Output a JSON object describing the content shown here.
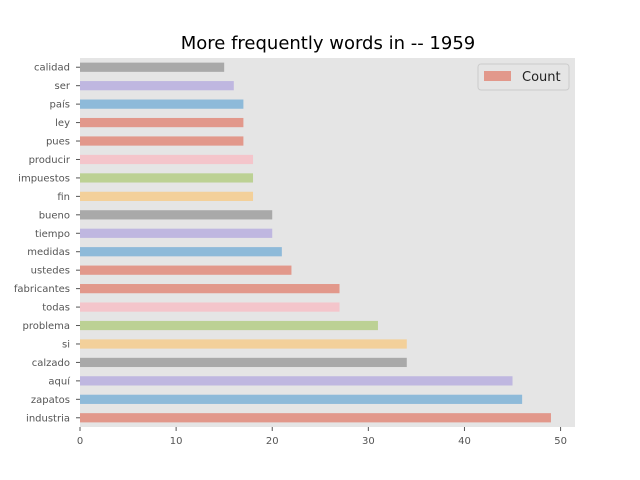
{
  "chart_data": {
    "type": "bar",
    "orientation": "horizontal",
    "title": "More frequently words in -- 1959",
    "xlabel": "",
    "ylabel": "",
    "categories": [
      "industria",
      "zapatos",
      "aquí",
      "calzado",
      "si",
      "problema",
      "todas",
      "fabricantes",
      "ustedes",
      "medidas",
      "tiempo",
      "bueno",
      "fin",
      "impuestos",
      "producir",
      "pues",
      "ley",
      "país",
      "ser",
      "calidad"
    ],
    "series": [
      {
        "name": "Count",
        "values": [
          49,
          46,
          45,
          34,
          34,
          31,
          27,
          27,
          22,
          21,
          20,
          20,
          18,
          18,
          18,
          17,
          17,
          17,
          16,
          15
        ]
      }
    ],
    "xlim": [
      0,
      51.5
    ],
    "xticks": [
      0,
      10,
      20,
      30,
      40,
      50
    ],
    "grid": false,
    "legend_position": "top-right",
    "background_color": "#e5e5e5",
    "bar_colors": [
      "#e2988b",
      "#8ebad9",
      "#bfb7e0",
      "#a9a9a9",
      "#f3d09a",
      "#bcd194",
      "#f4c5cb",
      "#e2988b",
      "#e2988b",
      "#8ebad9",
      "#bfb7e0",
      "#a9a9a9",
      "#f3d09a",
      "#bcd194",
      "#f4c5cb",
      "#e2988b",
      "#e2988b",
      "#8ebad9",
      "#bfb7e0",
      "#a9a9a9"
    ],
    "legend_color": "#e2988b"
  }
}
